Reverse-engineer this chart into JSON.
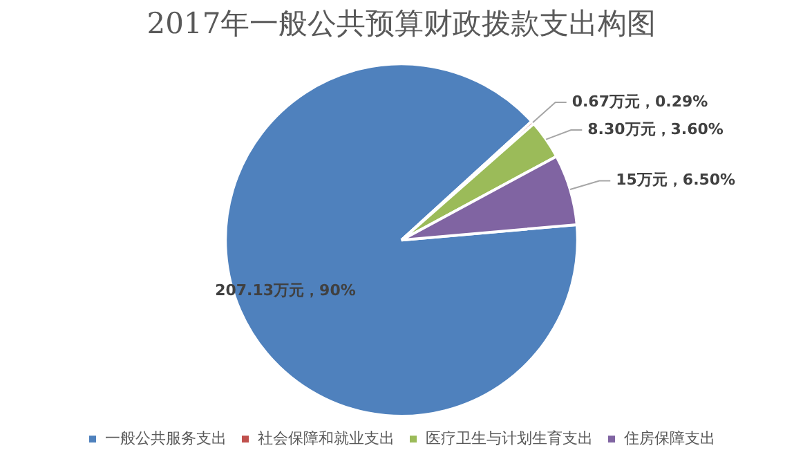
{
  "chart_data": {
    "type": "pie",
    "title": "2017年一般公共预算财政拨款支出构图",
    "categories": [
      "一般公共服务支出",
      "社会保障和就业支出",
      "医疗卫生与计划生育支出",
      "住房保障支出"
    ],
    "values": [
      207.13,
      0.67,
      8.3,
      15
    ],
    "colors": [
      "#4f81bd",
      "#c0504d",
      "#9bbb59",
      "#8064a2"
    ],
    "value_labels": [
      "207.13万元，90%",
      "0.67万元，0.29%",
      "8.30万元，3.60%",
      "15万元，6.50%"
    ],
    "legend": "bottom"
  }
}
